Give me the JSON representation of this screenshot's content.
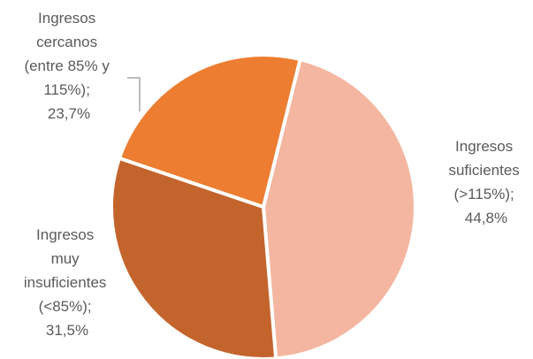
{
  "chart_data": {
    "type": "pie",
    "title": "",
    "slices": [
      {
        "name": "Ingresos suficientes (>115%)",
        "value": 44.8,
        "value_label": "44,8%",
        "label_lines": [
          "Ingresos",
          "suficientes",
          "(>115%);",
          "44,8%"
        ],
        "color": "#f4b6a0"
      },
      {
        "name": "Ingresos muy insuficientes (<85%)",
        "value": 31.5,
        "value_label": "31,5%",
        "label_lines": [
          "Ingresos",
          "muy",
          "insuficientes",
          "(<85%);",
          "31,5%"
        ],
        "color": "#c4642d"
      },
      {
        "name": "Ingresos cercanos (entre 85% y 115%)",
        "value": 23.7,
        "value_label": "23,7%",
        "label_lines": [
          "Ingresos",
          "cercanos",
          "(entre 85% y",
          "115%);",
          "23,7%"
        ],
        "color": "#ed7d31"
      }
    ],
    "start_angle_deg": 14,
    "direction": "clockwise",
    "legend": "none"
  }
}
